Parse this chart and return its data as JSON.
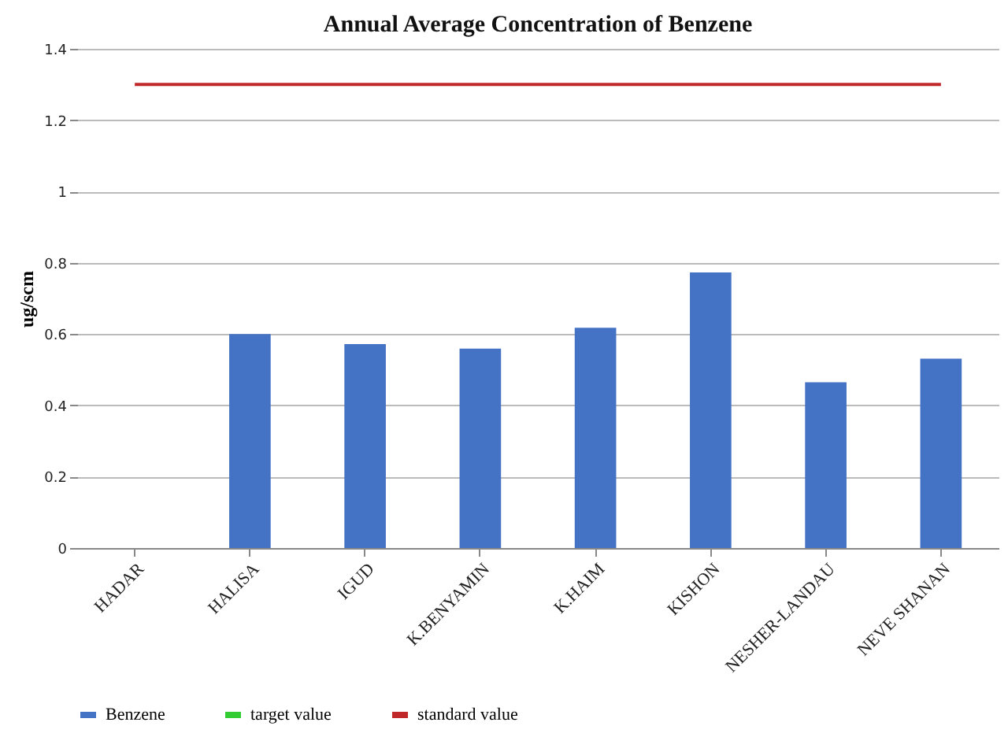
{
  "chart_data": {
    "type": "bar",
    "title": "Annual Average Concentration of Benzene",
    "ylabel": "ug/scm",
    "categories": [
      "HADAR",
      "HALISA",
      "IGUD",
      "K.BENYAMIN",
      "K.HAIM",
      "KISHON",
      "NESHER-LANDAU",
      "NEVE SHANAN"
    ],
    "series": [
      {
        "name": "Benzene",
        "color": "#4472c4",
        "values": [
          null,
          0.6,
          0.572,
          0.559,
          0.618,
          0.773,
          0.465,
          0.531
        ]
      },
      {
        "name": "target value",
        "type": "line",
        "color": "#33cc33",
        "line_style": "dashed",
        "values": [
          null,
          null,
          null,
          null,
          null,
          null,
          null,
          null
        ]
      },
      {
        "name": "standard value",
        "type": "line",
        "color": "#c0282a",
        "line_style": "solid",
        "values": [
          1.3,
          1.3,
          1.3,
          1.3,
          1.3,
          1.3,
          1.3,
          1.3
        ]
      }
    ],
    "ylim": [
      0,
      1.4
    ],
    "yticks": [
      0,
      0.2,
      0.4,
      0.6,
      0.8,
      1,
      1.2,
      1.4
    ],
    "grid": "y",
    "legend": "bottom"
  }
}
